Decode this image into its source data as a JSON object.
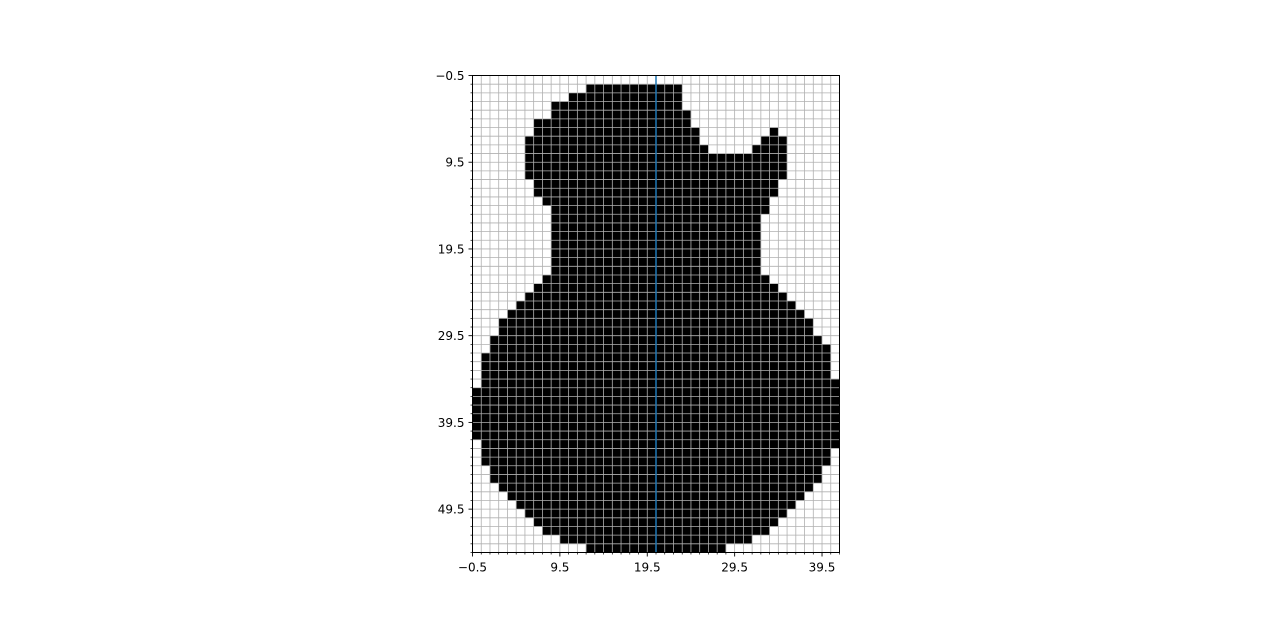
{
  "chart_data": {
    "type": "heatmap",
    "title": "",
    "xlabel": "",
    "ylabel": "",
    "cmap": "binary",
    "colors": {
      "filled": "#000000",
      "empty": "#ffffff",
      "grid": "#b0b0b0",
      "vline": "#1f77b4"
    },
    "xlim": [
      -0.5,
      41.5
    ],
    "ylim": [
      54.5,
      -0.5
    ],
    "grid": true,
    "minor_ticks": true,
    "x_ticks": [
      -0.5,
      9.5,
      19.5,
      29.5,
      39.5
    ],
    "x_tick_labels": [
      "−0.5",
      "9.5",
      "19.5",
      "29.5",
      "39.5"
    ],
    "y_ticks": [
      -0.5,
      9.5,
      19.5,
      29.5,
      39.5,
      49.5
    ],
    "y_tick_labels": [
      "−0.5",
      "9.5",
      "19.5",
      "29.5",
      "39.5",
      "49.5"
    ],
    "vertical_line_x": 20.5,
    "rows": 55,
    "cols": 42,
    "filled_spans": [
      [],
      [
        [
          13,
          23
        ]
      ],
      [
        [
          11,
          23
        ]
      ],
      [
        [
          9,
          23
        ]
      ],
      [
        [
          9,
          24
        ]
      ],
      [
        [
          7,
          24
        ]
      ],
      [
        [
          7,
          25
        ],
        [
          34,
          34
        ]
      ],
      [
        [
          6,
          25
        ],
        [
          33,
          35
        ]
      ],
      [
        [
          6,
          26
        ],
        [
          32,
          35
        ]
      ],
      [
        [
          6,
          35
        ]
      ],
      [
        [
          6,
          35
        ]
      ],
      [
        [
          6,
          35
        ]
      ],
      [
        [
          7,
          34
        ]
      ],
      [
        [
          7,
          34
        ]
      ],
      [
        [
          8,
          33
        ]
      ],
      [
        [
          9,
          33
        ]
      ],
      [
        [
          9,
          32
        ]
      ],
      [
        [
          9,
          32
        ]
      ],
      [
        [
          9,
          32
        ]
      ],
      [
        [
          9,
          32
        ]
      ],
      [
        [
          9,
          32
        ]
      ],
      [
        [
          9,
          32
        ]
      ],
      [
        [
          9,
          32
        ]
      ],
      [
        [
          8,
          33
        ]
      ],
      [
        [
          7,
          34
        ]
      ],
      [
        [
          6,
          35
        ]
      ],
      [
        [
          5,
          36
        ]
      ],
      [
        [
          4,
          37
        ]
      ],
      [
        [
          3,
          38
        ]
      ],
      [
        [
          3,
          38
        ]
      ],
      [
        [
          2,
          39
        ]
      ],
      [
        [
          2,
          40
        ]
      ],
      [
        [
          1,
          40
        ]
      ],
      [
        [
          1,
          40
        ]
      ],
      [
        [
          1,
          40
        ]
      ],
      [
        [
          1,
          41
        ]
      ],
      [
        [
          0,
          41
        ]
      ],
      [
        [
          0,
          41
        ]
      ],
      [
        [
          0,
          41
        ]
      ],
      [
        [
          0,
          41
        ]
      ],
      [
        [
          0,
          41
        ]
      ],
      [
        [
          0,
          41
        ]
      ],
      [
        [
          1,
          41
        ]
      ],
      [
        [
          1,
          40
        ]
      ],
      [
        [
          1,
          40
        ]
      ],
      [
        [
          2,
          39
        ]
      ],
      [
        [
          2,
          39
        ]
      ],
      [
        [
          3,
          38
        ]
      ],
      [
        [
          4,
          37
        ]
      ],
      [
        [
          5,
          36
        ]
      ],
      [
        [
          6,
          35
        ]
      ],
      [
        [
          7,
          34
        ]
      ],
      [
        [
          8,
          33
        ]
      ],
      [
        [
          10,
          31
        ]
      ],
      [
        [
          13,
          28
        ]
      ]
    ]
  }
}
